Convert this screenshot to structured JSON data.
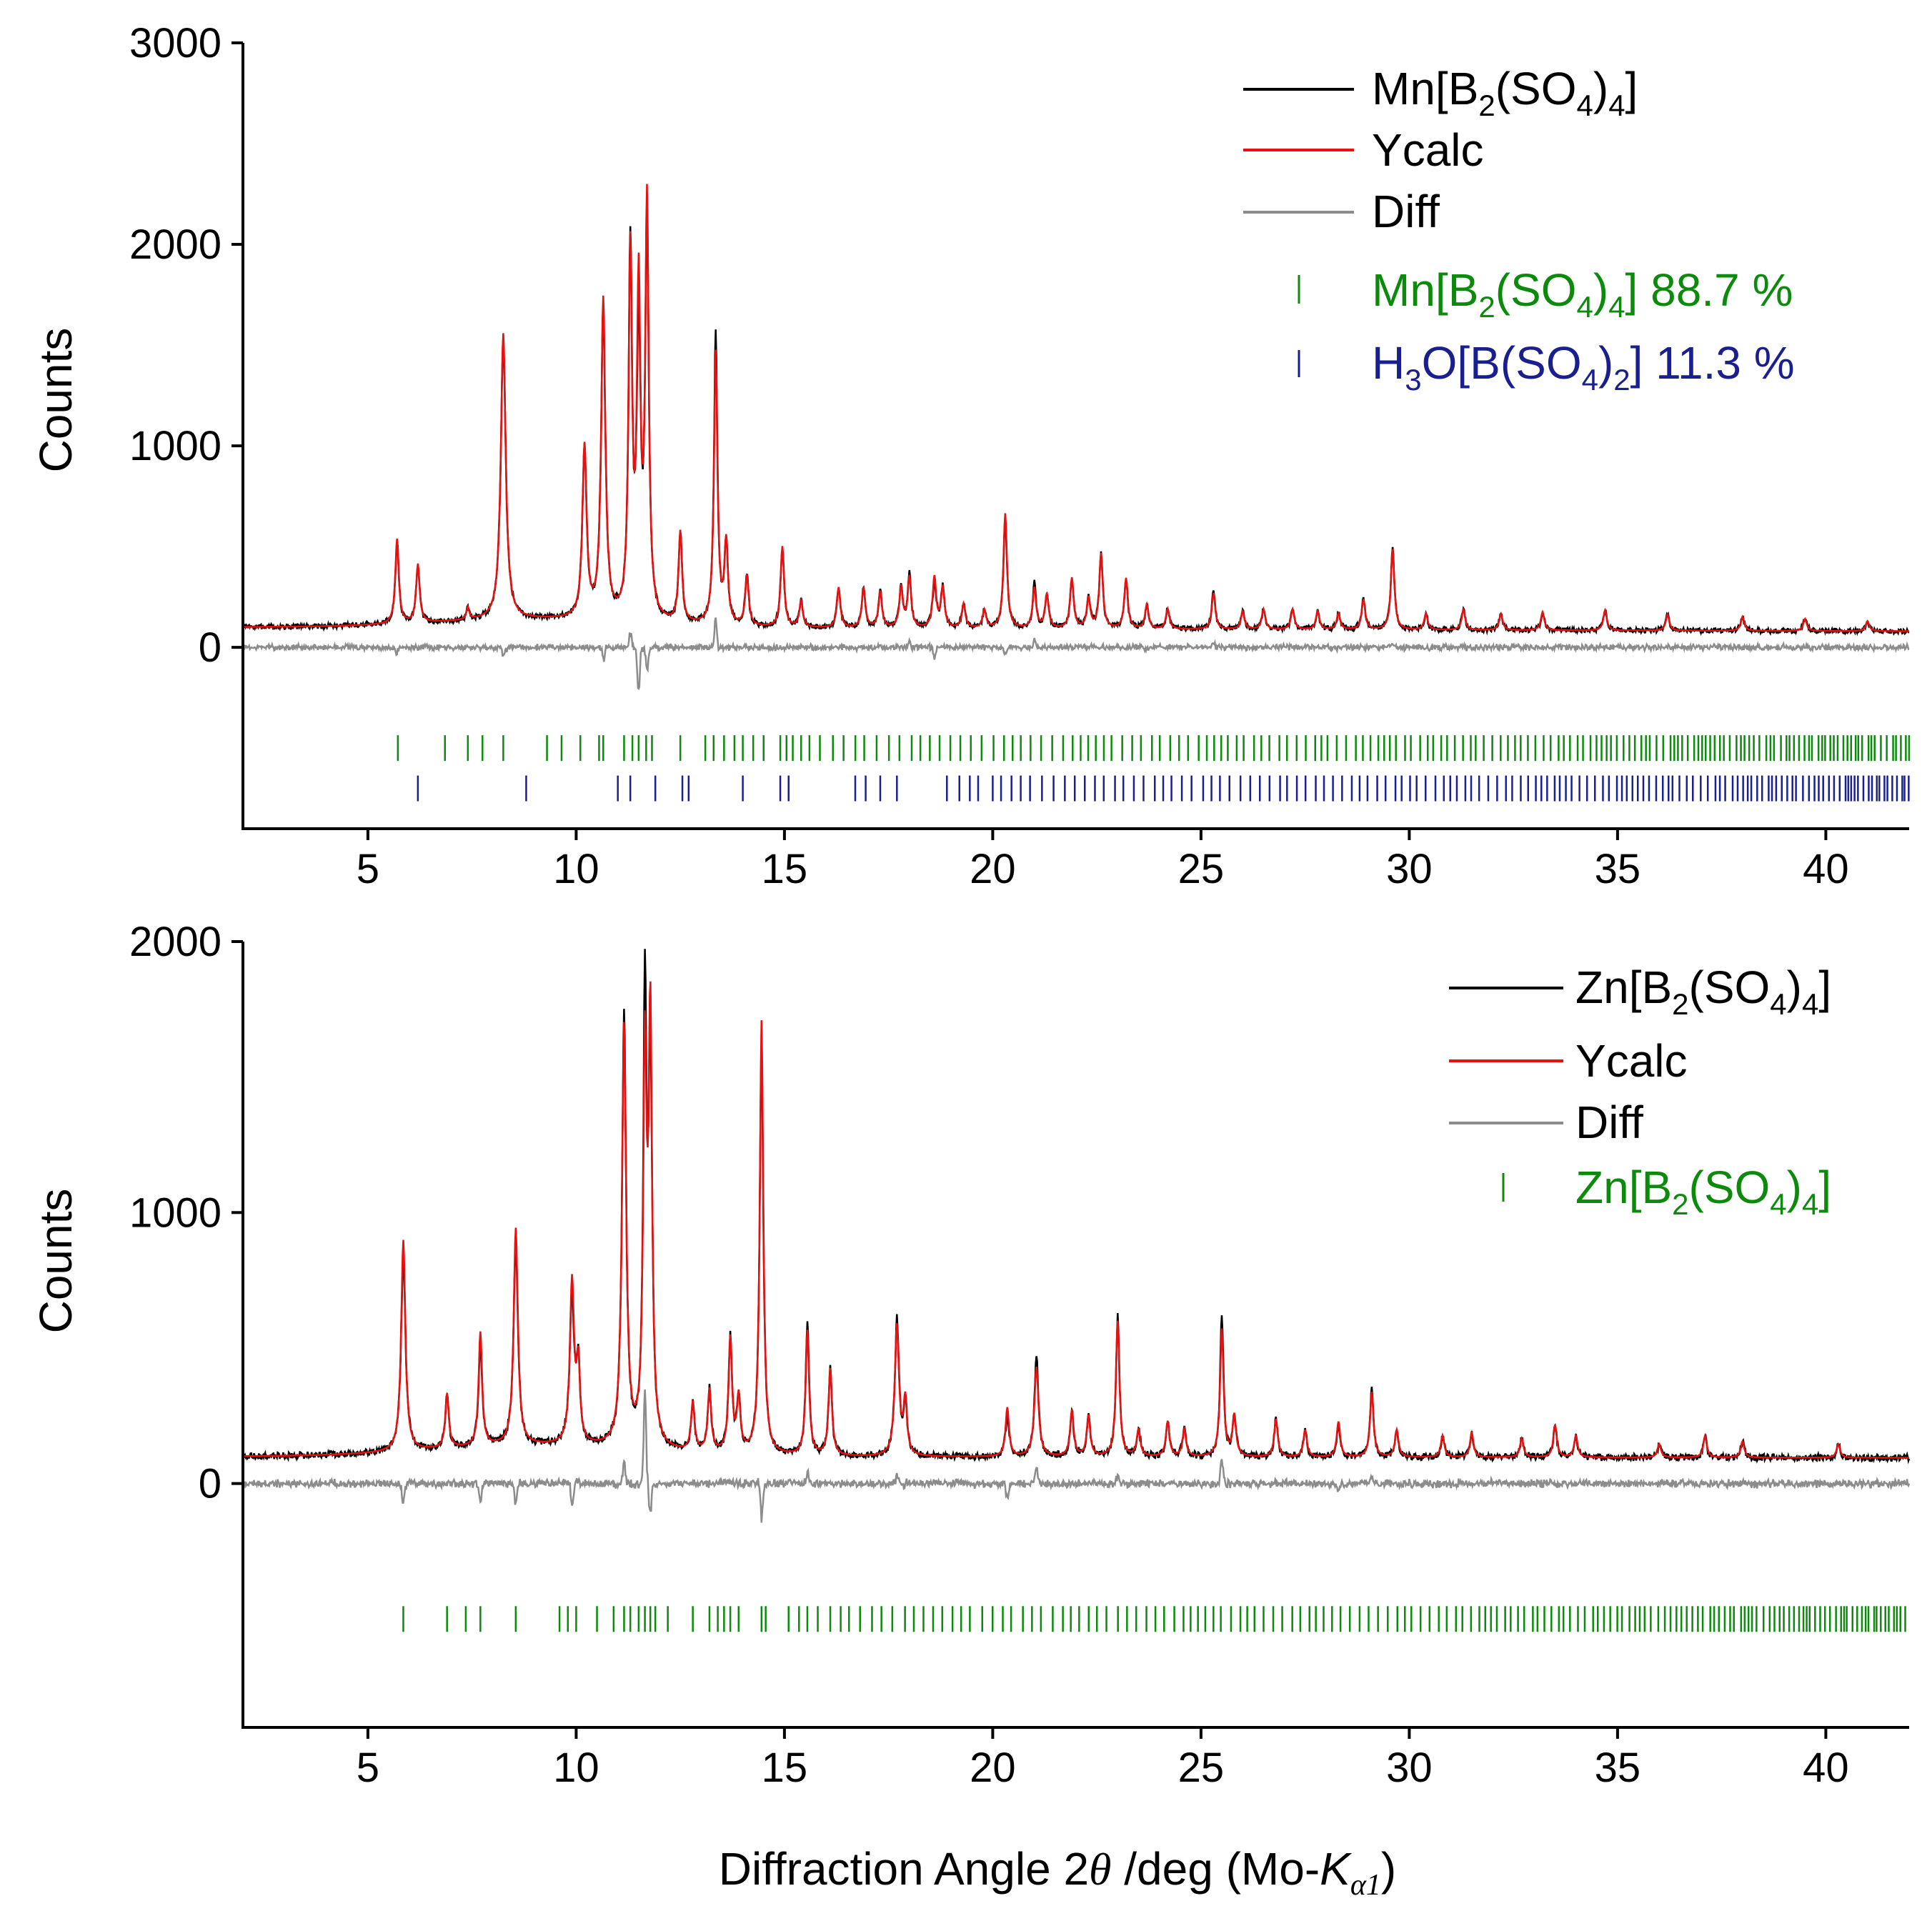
{
  "figure": {
    "xlabel_pre": "Diffraction Angle 2",
    "xlabel_theta": "θ",
    "xlabel_mid": " /deg (Mo-",
    "xlabel_K": "K",
    "xlabel_sub": "α1",
    "xlabel_post": ")"
  },
  "chart_data": [
    {
      "type": "line",
      "panel": "top",
      "ylabel": "Counts",
      "xlim": [
        2,
        42
      ],
      "ylim": [
        -900,
        3000
      ],
      "xticks": [
        5,
        10,
        15,
        20,
        25,
        30,
        35,
        40
      ],
      "yticks": [
        0,
        1000,
        2000,
        3000
      ],
      "baseline": 100,
      "baseline_end": 80,
      "peaks": [
        [
          5.7,
          420,
          0.05
        ],
        [
          6.2,
          290,
          0.05
        ],
        [
          7.4,
          60,
          0.04
        ],
        [
          8.25,
          1420,
          0.07
        ],
        [
          10.2,
          850,
          0.06
        ],
        [
          10.65,
          1580,
          0.06
        ],
        [
          11.3,
          1800,
          0.05
        ],
        [
          11.5,
          1600,
          0.05
        ],
        [
          11.7,
          2050,
          0.05
        ],
        [
          12.5,
          450,
          0.05
        ],
        [
          13.35,
          1350,
          0.05
        ],
        [
          13.6,
          400,
          0.05
        ],
        [
          14.1,
          250,
          0.05
        ],
        [
          14.95,
          400,
          0.05
        ],
        [
          15.4,
          130,
          0.05
        ],
        [
          16.3,
          200,
          0.05
        ],
        [
          16.9,
          200,
          0.05
        ],
        [
          17.3,
          180,
          0.05
        ],
        [
          17.8,
          200,
          0.05
        ],
        [
          18.0,
          250,
          0.05
        ],
        [
          18.6,
          250,
          0.05
        ],
        [
          18.8,
          200,
          0.05
        ],
        [
          19.3,
          120,
          0.05
        ],
        [
          19.8,
          90,
          0.05
        ],
        [
          20.3,
          570,
          0.05
        ],
        [
          21.0,
          200,
          0.05
        ],
        [
          21.3,
          170,
          0.05
        ],
        [
          21.9,
          250,
          0.05
        ],
        [
          22.3,
          150,
          0.05
        ],
        [
          22.6,
          370,
          0.05
        ],
        [
          23.2,
          250,
          0.05
        ],
        [
          23.7,
          120,
          0.05
        ],
        [
          24.2,
          100,
          0.05
        ],
        [
          25.3,
          180,
          0.05
        ],
        [
          26.0,
          90,
          0.05
        ],
        [
          26.5,
          100,
          0.05
        ],
        [
          27.2,
          100,
          0.05
        ],
        [
          27.8,
          90,
          0.05
        ],
        [
          28.3,
          80,
          0.05
        ],
        [
          28.9,
          150,
          0.05
        ],
        [
          29.6,
          400,
          0.05
        ],
        [
          30.4,
          80,
          0.05
        ],
        [
          31.3,
          100,
          0.05
        ],
        [
          32.2,
          80,
          0.05
        ],
        [
          33.2,
          90,
          0.05
        ],
        [
          34.7,
          100,
          0.05
        ],
        [
          36.2,
          80,
          0.05
        ],
        [
          38.0,
          70,
          0.05
        ],
        [
          39.5,
          60,
          0.05
        ],
        [
          41.0,
          50,
          0.05
        ]
      ],
      "diff_spikes": [
        [
          5.7,
          -30
        ],
        [
          8.25,
          -40
        ],
        [
          10.65,
          -60
        ],
        [
          11.3,
          80
        ],
        [
          11.5,
          -240
        ],
        [
          11.7,
          -130
        ],
        [
          13.35,
          150
        ],
        [
          18.0,
          40
        ],
        [
          18.6,
          -60
        ],
        [
          20.3,
          -40
        ],
        [
          21.0,
          40
        ],
        [
          25.3,
          30
        ],
        [
          29.6,
          20
        ],
        [
          31.3,
          20
        ]
      ],
      "series": [
        {
          "name": "Mn[B2(SO4)4]",
          "role": "observed",
          "color": "#000000"
        },
        {
          "name": "Ycalc",
          "role": "calculated",
          "color": "#e8110f"
        },
        {
          "name": "Diff",
          "role": "difference",
          "color": "#8c8c8c"
        }
      ],
      "reflection_rows": [
        {
          "phase": "Mn[B2(SO4)4]",
          "fraction": "88.7 %",
          "color": "#0b8a0b",
          "y_center": -500,
          "ticks": [
            5.72,
            6.85,
            7.4,
            7.75,
            8.25,
            9.3,
            9.65,
            10.1,
            10.55,
            10.65,
            11.15,
            11.35,
            11.5,
            11.68,
            11.82,
            12.5,
            13.1,
            13.3,
            13.55,
            13.8,
            14.0,
            14.25,
            14.5,
            14.9,
            15.05,
            15.2,
            15.4
          ]
        },
        {
          "phase": "H3O[B(SO4)2]",
          "fraction": "11.3 %",
          "color": "#1a1f8f",
          "y_center": -700,
          "ticks": [
            6.2,
            8.8,
            11.0,
            11.3,
            11.9,
            12.55,
            12.7,
            14.0,
            14.9,
            15.1,
            16.7,
            16.95,
            17.3,
            17.7,
            18.9,
            19.2,
            19.45,
            19.65,
            20.0
          ]
        }
      ],
      "legend": {
        "placement": "top-right",
        "line1_base": "Mn[B",
        "line1_sub1": "2",
        "line1_mid": "(SO",
        "line1_sub2": "4",
        "line1_close": ")",
        "line1_sub3": "4",
        "line1_end": "]",
        "ycalc": "Ycalc",
        "diff": "Diff",
        "phase1_base": "Mn[B",
        "phase1_sub1": "2",
        "phase1_mid": "(SO",
        "phase1_sub2": "4",
        "phase1_close": ")",
        "phase1_sub3": "4",
        "phase1_end": "] 88.7 %",
        "phase2_base": "H",
        "phase2_sub1": "3",
        "phase2_mid": "O[B(SO",
        "phase2_sub2": "4",
        "phase2_close": ")",
        "phase2_sub3": "2",
        "phase2_end": "] 11.3 %"
      }
    },
    {
      "type": "line",
      "panel": "bottom",
      "ylabel": "Counts",
      "xlim": [
        2,
        42
      ],
      "ylim": [
        -900,
        2000
      ],
      "xticks": [
        5,
        10,
        15,
        20,
        25,
        30,
        35,
        40
      ],
      "yticks": [
        0,
        1000,
        2000
      ],
      "baseline": 100,
      "baseline_end": 95,
      "peaks": [
        [
          5.85,
          780,
          0.06
        ],
        [
          6.9,
          200,
          0.05
        ],
        [
          7.7,
          420,
          0.05
        ],
        [
          8.55,
          800,
          0.06
        ],
        [
          9.9,
          600,
          0.06
        ],
        [
          10.05,
          280,
          0.05
        ],
        [
          11.15,
          1550,
          0.06
        ],
        [
          11.65,
          1400,
          0.05
        ],
        [
          11.78,
          1550,
          0.05
        ],
        [
          12.8,
          180,
          0.05
        ],
        [
          13.2,
          230,
          0.05
        ],
        [
          13.7,
          420,
          0.05
        ],
        [
          13.9,
          200,
          0.05
        ],
        [
          14.45,
          1600,
          0.05
        ],
        [
          15.55,
          460,
          0.05
        ],
        [
          16.1,
          320,
          0.05
        ],
        [
          17.7,
          480,
          0.06
        ],
        [
          17.9,
          200,
          0.05
        ],
        [
          20.35,
          180,
          0.05
        ],
        [
          21.05,
          330,
          0.06
        ],
        [
          21.9,
          170,
          0.05
        ],
        [
          22.3,
          150,
          0.05
        ],
        [
          23.0,
          500,
          0.05
        ],
        [
          23.5,
          100,
          0.05
        ],
        [
          24.2,
          130,
          0.05
        ],
        [
          24.6,
          100,
          0.05
        ],
        [
          25.5,
          470,
          0.05
        ],
        [
          25.8,
          150,
          0.05
        ],
        [
          26.8,
          140,
          0.05
        ],
        [
          27.5,
          100,
          0.05
        ],
        [
          28.3,
          130,
          0.05
        ],
        [
          29.1,
          240,
          0.05
        ],
        [
          29.7,
          100,
          0.05
        ],
        [
          30.8,
          80,
          0.05
        ],
        [
          31.5,
          90,
          0.05
        ],
        [
          32.7,
          70,
          0.05
        ],
        [
          33.5,
          120,
          0.05
        ],
        [
          34.0,
          80,
          0.05
        ],
        [
          36.0,
          50,
          0.05
        ],
        [
          37.1,
          80,
          0.05
        ],
        [
          38.0,
          60,
          0.05
        ],
        [
          40.3,
          50,
          0.05
        ]
      ],
      "diff_spikes": [
        [
          5.85,
          -80
        ],
        [
          7.7,
          -90
        ],
        [
          8.55,
          -90
        ],
        [
          9.9,
          -100
        ],
        [
          11.15,
          110
        ],
        [
          11.65,
          400
        ],
        [
          11.78,
          -120
        ],
        [
          14.45,
          -150
        ],
        [
          15.55,
          40
        ],
        [
          17.7,
          30
        ],
        [
          20.35,
          -70
        ],
        [
          21.05,
          80
        ],
        [
          23.0,
          40
        ],
        [
          25.5,
          110
        ],
        [
          28.3,
          -30
        ],
        [
          29.1,
          30
        ]
      ],
      "series": [
        {
          "name": "Zn[B2(SO4)4]",
          "role": "observed",
          "color": "#000000"
        },
        {
          "name": "Ycalc",
          "role": "calculated",
          "color": "#e8110f"
        },
        {
          "name": "Diff",
          "role": "difference",
          "color": "#8c8c8c"
        }
      ],
      "reflection_rows": [
        {
          "phase": "Zn[B2(SO4)4]",
          "color": "#0b8a0b",
          "y_center": -500,
          "ticks": [
            5.85,
            6.9,
            7.35,
            7.7,
            8.55,
            9.6,
            9.8,
            10.0,
            10.5,
            10.9,
            11.15,
            11.3,
            11.5,
            11.65,
            11.78,
            11.9,
            12.2,
            12.8,
            13.2,
            13.4,
            13.55,
            13.7,
            13.9,
            14.45,
            14.55,
            15.1,
            15.35,
            15.55,
            15.8,
            16.1,
            16.35
          ]
        }
      ],
      "legend": {
        "placement": "top-right",
        "line1_base": "Zn[B",
        "line1_sub1": "2",
        "line1_mid": "(SO",
        "line1_sub2": "4",
        "line1_close": ")",
        "line1_sub3": "4",
        "line1_end": "]",
        "ycalc": "Ycalc",
        "diff": "Diff",
        "phase1_base": "Zn[B",
        "phase1_sub1": "2",
        "phase1_mid": "(SO",
        "phase1_sub2": "4",
        "phase1_close": ")",
        "phase1_sub3": "4",
        "phase1_end": "]"
      }
    }
  ]
}
